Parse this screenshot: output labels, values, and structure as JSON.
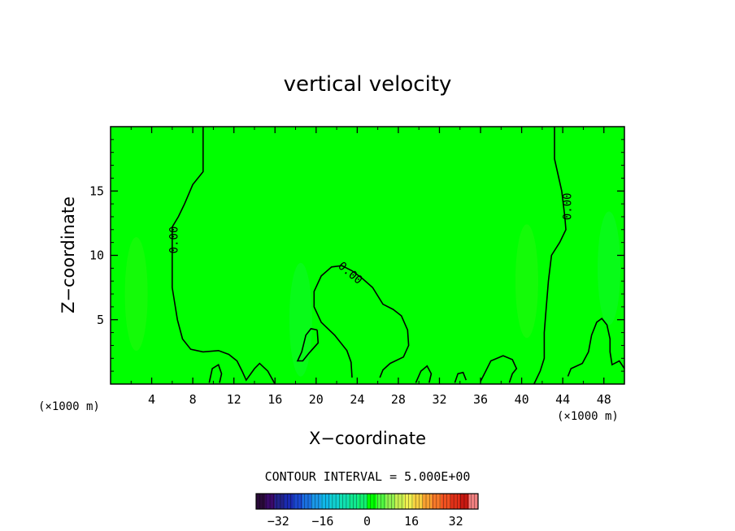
{
  "chart_data": {
    "type": "contour",
    "title": "vertical velocity",
    "xlabel": "X−coordinate",
    "ylabel": "Z−coordinate",
    "x_unit_label": "(×1000 m)",
    "z_unit_label": "(×1000 m)",
    "xlim": [
      0,
      50
    ],
    "zlim": [
      0,
      20
    ],
    "x_ticks": [
      4,
      8,
      12,
      16,
      20,
      24,
      28,
      32,
      36,
      40,
      44,
      48
    ],
    "z_ticks": [
      5,
      10,
      15
    ],
    "contour_labels": [
      {
        "text": "0.00",
        "x": 6.2,
        "z": 11.2,
        "rotation": -90
      },
      {
        "text": "0.00",
        "x": 23.3,
        "z": 8.6,
        "rotation": 40
      },
      {
        "text": "0.00",
        "x": 44.5,
        "z": 13.8,
        "rotation": -90
      }
    ],
    "contours": [
      [
        [
          9.0,
          20
        ],
        [
          9.0,
          16.5
        ],
        [
          8.0,
          15.5
        ],
        [
          7.2,
          14
        ],
        [
          6.6,
          13
        ],
        [
          6.0,
          12.2
        ],
        [
          6.0,
          7.5
        ],
        [
          6.5,
          5
        ],
        [
          7.0,
          3.5
        ],
        [
          7.8,
          2.7
        ],
        [
          9.0,
          2.5
        ],
        [
          10.5,
          2.6
        ],
        [
          11.5,
          2.3
        ],
        [
          12.3,
          1.8
        ],
        [
          12.8,
          1.0
        ],
        [
          13.2,
          0.3
        ],
        [
          14.0,
          1.2
        ],
        [
          14.5,
          1.6
        ],
        [
          15.3,
          1.0
        ],
        [
          16.0,
          0
        ]
      ],
      [
        [
          43.2,
          20
        ],
        [
          43.2,
          17.5
        ],
        [
          43.9,
          15
        ],
        [
          44.2,
          13
        ],
        [
          44.3,
          12
        ],
        [
          43.7,
          11
        ],
        [
          42.9,
          10
        ],
        [
          42.6,
          8
        ],
        [
          42.4,
          6
        ],
        [
          42.2,
          4
        ],
        [
          42.2,
          2
        ],
        [
          41.8,
          1.0
        ],
        [
          41.2,
          0
        ]
      ],
      [
        [
          23.5,
          0.5
        ],
        [
          23.4,
          1.7
        ],
        [
          23.0,
          2.6
        ],
        [
          21.8,
          3.8
        ],
        [
          20.5,
          4.8
        ],
        [
          19.8,
          6
        ],
        [
          19.8,
          7.2
        ],
        [
          20.5,
          8.4
        ],
        [
          21.5,
          9.1
        ],
        [
          22.5,
          9.2
        ],
        [
          23.5,
          8.8
        ],
        [
          24.5,
          8.2
        ],
        [
          25.5,
          7.5
        ],
        [
          26.5,
          6.2
        ],
        [
          27.5,
          5.8
        ],
        [
          28.3,
          5.3
        ],
        [
          28.9,
          4.2
        ],
        [
          29.0,
          3.0
        ],
        [
          28.5,
          2.1
        ],
        [
          27.2,
          1.6
        ],
        [
          26.5,
          1.1
        ],
        [
          26.2,
          0.5
        ]
      ],
      [
        [
          20.1,
          4.2
        ],
        [
          19.5,
          4.3
        ],
        [
          19.0,
          3.8
        ],
        [
          18.6,
          2.5
        ],
        [
          18.2,
          1.8
        ],
        [
          18.7,
          1.8
        ],
        [
          19.3,
          2.4
        ],
        [
          20.2,
          3.2
        ],
        [
          20.1,
          4.2
        ]
      ],
      [
        [
          44.5,
          0.6
        ],
        [
          44.8,
          1.2
        ],
        [
          45.9,
          1.6
        ],
        [
          46.5,
          2.5
        ],
        [
          46.8,
          3.8
        ],
        [
          47.3,
          4.8
        ],
        [
          47.8,
          5.1
        ],
        [
          48.3,
          4.6
        ],
        [
          48.6,
          3.5
        ],
        [
          48.6,
          2.5
        ],
        [
          48.8,
          1.5
        ],
        [
          49.5,
          1.8
        ],
        [
          50,
          1.2
        ]
      ],
      [
        [
          36.0,
          0.2
        ],
        [
          36.5,
          1.0
        ],
        [
          37.0,
          1.8
        ],
        [
          38.2,
          2.2
        ],
        [
          39.1,
          1.9
        ],
        [
          39.5,
          1.2
        ],
        [
          39.1,
          0.8
        ],
        [
          38.8,
          0.1
        ]
      ],
      [
        [
          9.6,
          0.1
        ],
        [
          9.9,
          1.2
        ],
        [
          10.5,
          1.5
        ],
        [
          10.8,
          0.8
        ],
        [
          10.6,
          0.1
        ]
      ],
      [
        [
          33.5,
          0.1
        ],
        [
          33.8,
          0.8
        ],
        [
          34.3,
          0.9
        ],
        [
          34.6,
          0.3
        ]
      ],
      [
        [
          29.7,
          0.1
        ],
        [
          30.2,
          1.0
        ],
        [
          30.8,
          1.4
        ],
        [
          31.2,
          0.8
        ],
        [
          31.0,
          0.1
        ]
      ]
    ],
    "colorbar": {
      "ticks": [
        -32,
        -16,
        0,
        16,
        32
      ],
      "range": [
        -40,
        40
      ],
      "colors": [
        "#2a0a3a",
        "#3a0a6a",
        "#22228a",
        "#1a2ab0",
        "#1a48d0",
        "#1a70e0",
        "#1a98e8",
        "#10b8e8",
        "#10d0d0",
        "#10e0b0",
        "#10e890",
        "#10f070",
        "#00ff00",
        "#50f840",
        "#90f050",
        "#c8f050",
        "#f0f050",
        "#f8d040",
        "#f8a030",
        "#f87828",
        "#f05020",
        "#e03018",
        "#c81810",
        "#f08080"
      ]
    },
    "interval_text": "CONTOUR INTERVAL = 5.000E+00",
    "field_color": "#00ff00"
  }
}
